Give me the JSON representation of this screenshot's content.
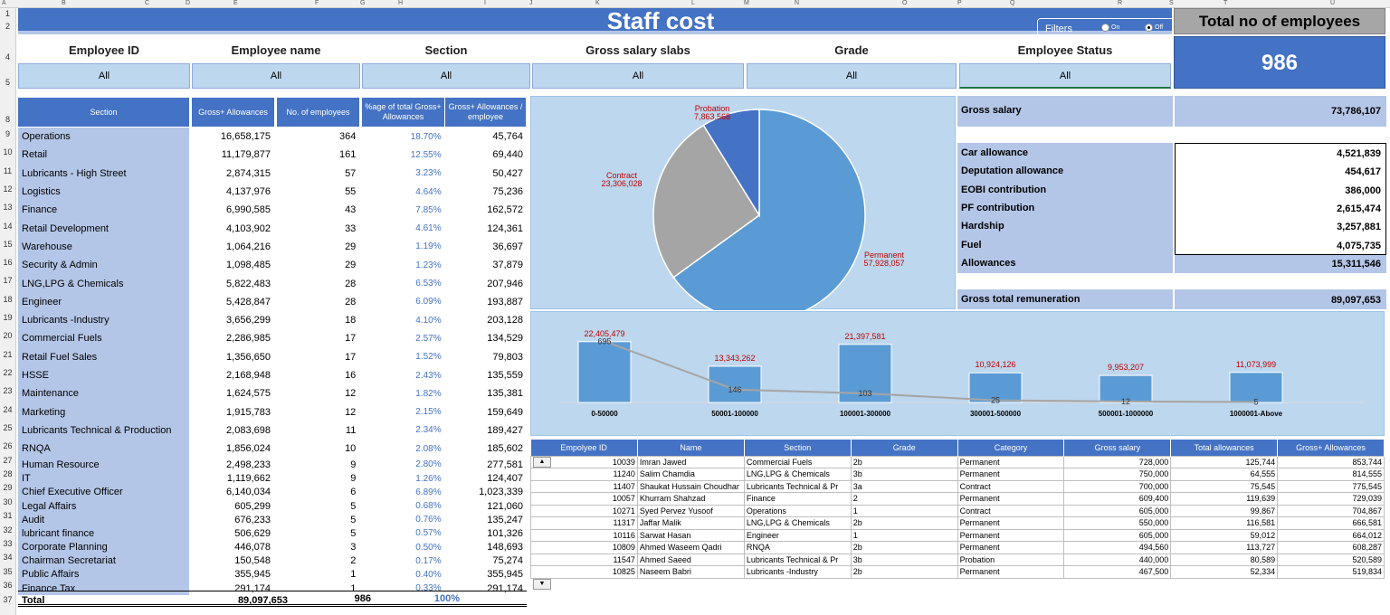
{
  "columns": [
    "A",
    "B",
    "C",
    "D",
    "E",
    "F",
    "G",
    "H",
    "I",
    "J",
    "K",
    "L",
    "M",
    "N",
    "O",
    "P",
    "Q",
    "R",
    "S",
    "T",
    "U"
  ],
  "title": "Staff cost",
  "filters_control": {
    "label": "Filters",
    "on": "On",
    "off": "Off",
    "selected": "Off"
  },
  "total_employees": {
    "label": "Total no of employees",
    "value": "986"
  },
  "filters": [
    {
      "label": "Employee ID",
      "value": "All"
    },
    {
      "label": "Employee name",
      "value": "All"
    },
    {
      "label": "Section",
      "value": "All"
    },
    {
      "label": "Gross salary slabs",
      "value": "All"
    },
    {
      "label": "Grade",
      "value": "All"
    },
    {
      "label": "Employee Status",
      "value": "All"
    }
  ],
  "section_table": {
    "headers": [
      "Section",
      "Gross+ Allowances",
      "No. of employees",
      "%age of total Gross+ Allowances",
      "Gross+ Allowances / employee"
    ],
    "rows": [
      [
        "Operations",
        "16,658,175",
        "364",
        "18.70%",
        "45,764"
      ],
      [
        "Retail",
        "11,179,877",
        "161",
        "12.55%",
        "69,440"
      ],
      [
        "Lubricants - High Street",
        "2,874,315",
        "57",
        "3.23%",
        "50,427"
      ],
      [
        "Logistics",
        "4,137,976",
        "55",
        "4.64%",
        "75,236"
      ],
      [
        "Finance",
        "6,990,585",
        "43",
        "7.85%",
        "162,572"
      ],
      [
        "Retail Development",
        "4,103,902",
        "33",
        "4.61%",
        "124,361"
      ],
      [
        "Warehouse",
        "1,064,216",
        "29",
        "1.19%",
        "36,697"
      ],
      [
        "Security & Admin",
        "1,098,485",
        "29",
        "1.23%",
        "37,879"
      ],
      [
        "LNG,LPG & Chemicals",
        "5,822,483",
        "28",
        "6.53%",
        "207,946"
      ],
      [
        "Engineer",
        "5,428,847",
        "28",
        "6.09%",
        "193,887"
      ],
      [
        "Lubricants -Industry",
        "3,656,299",
        "18",
        "4.10%",
        "203,128"
      ],
      [
        "Commercial Fuels",
        "2,286,985",
        "17",
        "2.57%",
        "134,529"
      ],
      [
        "Retail Fuel Sales",
        "1,356,650",
        "17",
        "1.52%",
        "79,803"
      ],
      [
        "HSSE",
        "2,168,948",
        "16",
        "2.43%",
        "135,559"
      ],
      [
        "Maintenance",
        "1,624,575",
        "12",
        "1.82%",
        "135,381"
      ],
      [
        "Marketing",
        "1,915,783",
        "12",
        "2.15%",
        "159,649"
      ],
      [
        "Lubricants Technical & Production",
        "2,083,698",
        "11",
        "2.34%",
        "189,427"
      ],
      [
        "RNQA",
        "1,856,024",
        "10",
        "2.08%",
        "185,602"
      ],
      [
        "Human Resource",
        "2,498,233",
        "9",
        "2.80%",
        "277,581"
      ],
      [
        "IT",
        "1,119,662",
        "9",
        "1.26%",
        "124,407"
      ],
      [
        "Chief Executive Officer",
        "6,140,034",
        "6",
        "6.89%",
        "1,023,339"
      ],
      [
        "Legal Affairs",
        "605,299",
        "5",
        "0.68%",
        "121,060"
      ],
      [
        "Audit",
        "676,233",
        "5",
        "0.76%",
        "135,247"
      ],
      [
        "lubricant finance",
        "506,629",
        "5",
        "0.57%",
        "101,326"
      ],
      [
        "Corporate Planning",
        "446,078",
        "3",
        "0.50%",
        "148,693"
      ],
      [
        "Chairman Secretariat",
        "150,548",
        "2",
        "0.17%",
        "75,274"
      ],
      [
        "Public Affairs",
        "355,945",
        "1",
        "0.40%",
        "355,945"
      ],
      [
        "Finance Tax",
        "291,174",
        "1",
        "0.33%",
        "291,174"
      ]
    ],
    "total": [
      "Total",
      "89,097,653",
      "986",
      "100%"
    ]
  },
  "remuneration": {
    "gross_salary": {
      "label": "Gross salary",
      "value": "73,786,107"
    },
    "items": [
      {
        "label": "Car allowance",
        "value": "4,521,839"
      },
      {
        "label": "Deputation allowance",
        "value": "454,617"
      },
      {
        "label": "EOBI contribution",
        "value": "386,000"
      },
      {
        "label": "PF contribution",
        "value": "2,615,474"
      },
      {
        "label": "Hardship",
        "value": "3,257,881"
      },
      {
        "label": "Fuel",
        "value": "4,075,735"
      }
    ],
    "allowances": {
      "label": "Allowances",
      "value": "15,311,546"
    },
    "total": {
      "label": "Gross total remuneration",
      "value": "89,097,653"
    }
  },
  "chart_data": [
    {
      "type": "pie",
      "slices": [
        {
          "name": "Permanent",
          "value": 57928057,
          "label": "57,928,057",
          "color": "#5b9bd5"
        },
        {
          "name": "Contract",
          "value": 23306028,
          "label": "23,306,028",
          "color": "#a5a5a5"
        },
        {
          "name": "Probation",
          "value": 7863568,
          "label": "7,863,568",
          "color": "#4472c4"
        }
      ]
    },
    {
      "type": "bar",
      "categories": [
        "0-50000",
        "50001-100000",
        "100001-300000",
        "300001-500000",
        "500001-1000000",
        "1000001-Above"
      ],
      "series": [
        {
          "values": [
            22405479,
            13343262,
            21397581,
            10924126,
            9953207,
            11073999
          ],
          "labels": [
            "22,405,479",
            "13,343,262",
            "21,397,581",
            "10,924,126",
            "9,953,207",
            "11,073,999"
          ],
          "color": "#5b9bd5"
        },
        {
          "values": [
            695,
            146,
            103,
            25,
            12,
            5
          ],
          "type": "line",
          "color": "#a5a5a5"
        }
      ]
    }
  ],
  "employee_table": {
    "headers": [
      "Empolyee ID",
      "Name",
      "Section",
      "Grade",
      "Category",
      "Gross salary",
      "Total allowances",
      "Gross+ Allowances"
    ],
    "rows": [
      [
        "10039",
        "Imran Jawed",
        "Commercial Fuels",
        "2b",
        "Permanent",
        "728,000",
        "125,744",
        "853,744"
      ],
      [
        "11240",
        "Salim Chamdia",
        "LNG,LPG & Chemicals",
        "3b",
        "Permanent",
        "750,000",
        "64,555",
        "814,555"
      ],
      [
        "11407",
        "Shaukat Hussain Choudhar",
        "Lubricants Technical & Pr",
        "3a",
        "Contract",
        "700,000",
        "75,545",
        "775,545"
      ],
      [
        "10057",
        "Khurram Shahzad",
        "Finance",
        "2",
        "Permanent",
        "609,400",
        "119,639",
        "729,039"
      ],
      [
        "10271",
        "Syed Pervez Yusoof",
        "Operations",
        "1",
        "Contract",
        "605,000",
        "99,867",
        "704,867"
      ],
      [
        "11317",
        "Jaffar Malik",
        "LNG,LPG & Chemicals",
        "2b",
        "Permanent",
        "550,000",
        "116,581",
        "666,581"
      ],
      [
        "10116",
        "Sarwat Hasan",
        "Engineer",
        "1",
        "Permanent",
        "605,000",
        "59,012",
        "664,012"
      ],
      [
        "10809",
        "Ahmed Waseem Qadri",
        "RNQA",
        "2b",
        "Permanent",
        "494,560",
        "113,727",
        "608,287"
      ],
      [
        "11547",
        "Ahmed Saeed",
        "Lubricants Technical & Pr",
        "3b",
        "Probation",
        "440,000",
        "80,589",
        "520,589"
      ],
      [
        "10825",
        "Naseem Babri",
        "Lubricants -Industry",
        "2b",
        "Permanent",
        "467,500",
        "52,334",
        "519,834"
      ]
    ]
  }
}
